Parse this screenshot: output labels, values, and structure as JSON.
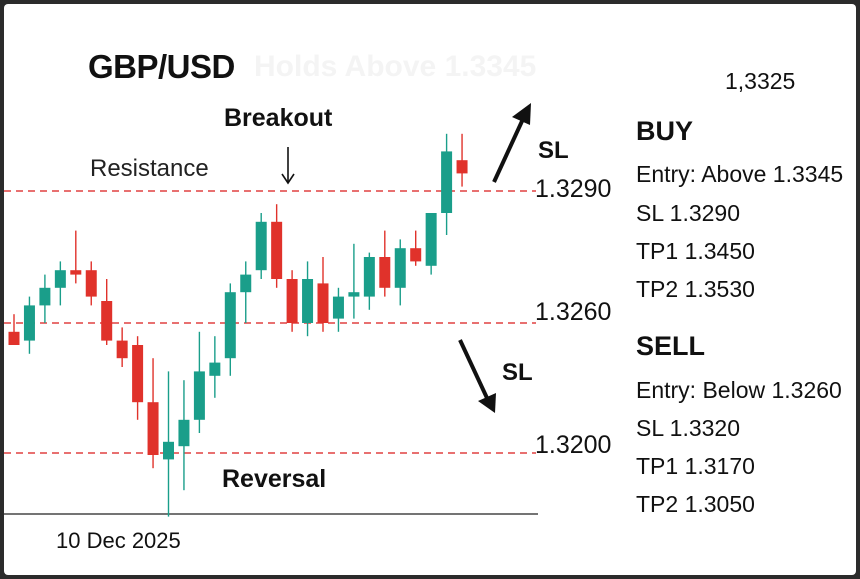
{
  "header": {
    "pair": "GBP/USD",
    "faded_subtitle": "Holds Above 1.3345",
    "top_price": "1,3325"
  },
  "annotations": {
    "breakout": "Breakout",
    "resistance": "Resistance",
    "reversal": "Reversal",
    "sl_up": "SL",
    "sl_down": "SL",
    "date": "10 Dec 2025"
  },
  "levels": {
    "resistance": "1.3290",
    "support": "1.3260",
    "lower": "1.3200"
  },
  "buy": {
    "title": "BUY",
    "entry": "Entry: Above 1.3345",
    "sl": "SL 1.3290",
    "tp1": "TP1 1.3450",
    "tp2": "TP2 1.3530"
  },
  "sell": {
    "title": "SELL",
    "entry": "Entry: Below 1.3260",
    "sl": "SL 1.3320",
    "tp1": "TP1 1.3170",
    "tp2": "TP2 1.3050"
  },
  "colors": {
    "bull": "#1a9e8a",
    "bear": "#e0322b",
    "level_line": "#e04040",
    "text": "#111111"
  },
  "chart_data": {
    "type": "candlestick",
    "title": "GBP/USD",
    "reference_levels": [
      1.329,
      1.326,
      1.32
    ],
    "candles": [
      {
        "o": 1.3258,
        "h": 1.3262,
        "l": 1.3255,
        "c": 1.3255
      },
      {
        "o": 1.3256,
        "h": 1.3266,
        "l": 1.3253,
        "c": 1.3264
      },
      {
        "o": 1.3264,
        "h": 1.3271,
        "l": 1.326,
        "c": 1.3268
      },
      {
        "o": 1.3268,
        "h": 1.3274,
        "l": 1.3264,
        "c": 1.3272
      },
      {
        "o": 1.3272,
        "h": 1.3281,
        "l": 1.3269,
        "c": 1.3271
      },
      {
        "o": 1.3272,
        "h": 1.3274,
        "l": 1.3264,
        "c": 1.3266
      },
      {
        "o": 1.3265,
        "h": 1.327,
        "l": 1.3255,
        "c": 1.3256
      },
      {
        "o": 1.3256,
        "h": 1.3259,
        "l": 1.325,
        "c": 1.3252
      },
      {
        "o": 1.3255,
        "h": 1.3257,
        "l": 1.3238,
        "c": 1.3242
      },
      {
        "o": 1.3242,
        "h": 1.3252,
        "l": 1.3227,
        "c": 1.323
      },
      {
        "o": 1.3229,
        "h": 1.3249,
        "l": 1.3216,
        "c": 1.3233
      },
      {
        "o": 1.3232,
        "h": 1.3247,
        "l": 1.3222,
        "c": 1.3238
      },
      {
        "o": 1.3238,
        "h": 1.3258,
        "l": 1.3235,
        "c": 1.3249
      },
      {
        "o": 1.3248,
        "h": 1.3257,
        "l": 1.3243,
        "c": 1.3251
      },
      {
        "o": 1.3252,
        "h": 1.3269,
        "l": 1.3248,
        "c": 1.3267
      },
      {
        "o": 1.3267,
        "h": 1.3274,
        "l": 1.326,
        "c": 1.3271
      },
      {
        "o": 1.3272,
        "h": 1.3285,
        "l": 1.327,
        "c": 1.3283
      },
      {
        "o": 1.3283,
        "h": 1.3287,
        "l": 1.3268,
        "c": 1.327
      },
      {
        "o": 1.327,
        "h": 1.3272,
        "l": 1.3258,
        "c": 1.326
      },
      {
        "o": 1.326,
        "h": 1.3274,
        "l": 1.3257,
        "c": 1.327
      },
      {
        "o": 1.3269,
        "h": 1.3275,
        "l": 1.3258,
        "c": 1.326
      },
      {
        "o": 1.3261,
        "h": 1.3268,
        "l": 1.3258,
        "c": 1.3266
      },
      {
        "o": 1.3266,
        "h": 1.3278,
        "l": 1.3261,
        "c": 1.3267
      },
      {
        "o": 1.3266,
        "h": 1.3276,
        "l": 1.3263,
        "c": 1.3275
      },
      {
        "o": 1.3275,
        "h": 1.3281,
        "l": 1.3266,
        "c": 1.3268
      },
      {
        "o": 1.3268,
        "h": 1.3279,
        "l": 1.3264,
        "c": 1.3277
      },
      {
        "o": 1.3277,
        "h": 1.3281,
        "l": 1.3273,
        "c": 1.3274
      },
      {
        "o": 1.3273,
        "h": 1.3285,
        "l": 1.3271,
        "c": 1.3285
      },
      {
        "o": 1.3285,
        "h": 1.3303,
        "l": 1.328,
        "c": 1.3299
      },
      {
        "o": 1.3297,
        "h": 1.3303,
        "l": 1.3291,
        "c": 1.3294
      }
    ]
  }
}
